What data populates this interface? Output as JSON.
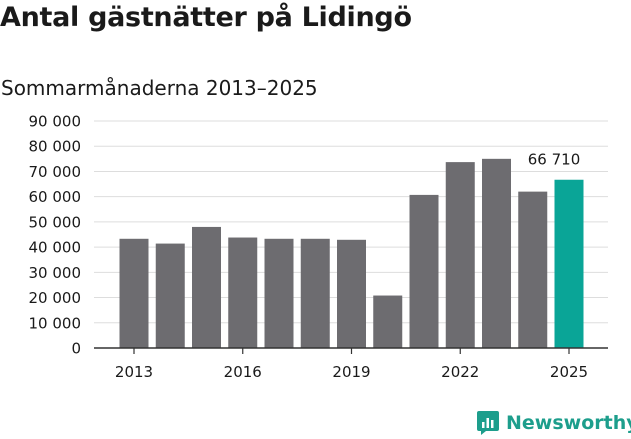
{
  "header": {
    "title": "Antal gästnätter på Lidingö",
    "subtitle": "Sommarmånaderna 2013–2025"
  },
  "brand": {
    "name": "Newsworthy",
    "icon": "newsworthy-logo-icon",
    "color": "#1d9e8c"
  },
  "colors": {
    "bar": "#6d6c70",
    "highlight": "#0aa597",
    "grid": "#dddddd",
    "axis": "#333333"
  },
  "chart_data": {
    "type": "bar",
    "title": "Antal gästnätter på Lidingö",
    "subtitle": "Sommarmånaderna 2013–2025",
    "categories": [
      "2013",
      "2014",
      "2015",
      "2016",
      "2017",
      "2018",
      "2019",
      "2020",
      "2021",
      "2022",
      "2023",
      "2024",
      "2025"
    ],
    "values": [
      43300,
      41400,
      48000,
      43800,
      43300,
      43300,
      42900,
      20800,
      60700,
      73700,
      75000,
      62000,
      66710
    ],
    "x_tick_labels": [
      "2013",
      "2016",
      "2019",
      "2022",
      "2025"
    ],
    "y_ticks": [
      0,
      10000,
      20000,
      30000,
      40000,
      50000,
      60000,
      70000,
      80000,
      90000
    ],
    "y_tick_labels": [
      "0",
      "10 000",
      "20 000",
      "30 000",
      "40 000",
      "50 000",
      "60 000",
      "70 000",
      "80 000",
      "90 000"
    ],
    "ylim": [
      0,
      90000
    ],
    "highlight_index": 12,
    "annotation": {
      "index": 12,
      "text": "66 710"
    },
    "grid": true,
    "legend": "none"
  }
}
